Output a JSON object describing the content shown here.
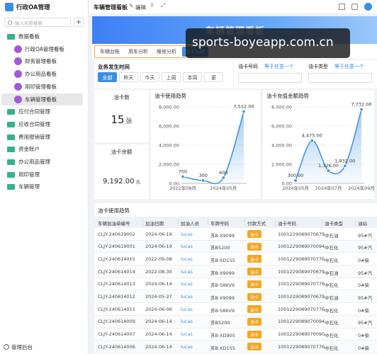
{
  "sidebar": {
    "app_title": "行政OA管理",
    "search_placeholder": "输入名称搜索",
    "add": "+",
    "tree": [
      {
        "label": "数据看板",
        "children": [
          {
            "label": "行政OA管理看板"
          },
          {
            "label": "财务管理看板"
          },
          {
            "label": "办公用品看板"
          },
          {
            "label": "用印管理看板"
          },
          {
            "label": "车辆管理看板",
            "selected": true
          }
        ]
      },
      {
        "label": "应付合同管理"
      },
      {
        "label": "应收合同管理"
      },
      {
        "label": "费用报销管理"
      },
      {
        "label": "资金账户"
      },
      {
        "label": "办公用品管理"
      },
      {
        "label": "用印管理"
      },
      {
        "label": "车辆管理"
      }
    ],
    "footer": "管理后台"
  },
  "topbar": {
    "title": "车辆管理看板",
    "edit": "编辑"
  },
  "banner": {
    "title": "车辆管理看板"
  },
  "watermark": "sports-boyeapp.com.cn",
  "tabs": [
    {
      "label": "车辆台账"
    },
    {
      "label": "用车分析"
    },
    {
      "label": "维修分析"
    },
    {
      "label": "油卡分析",
      "active": true
    }
  ],
  "filters": {
    "time_label": "业务发生时间",
    "time_options": [
      {
        "label": "全部",
        "active": true
      },
      {
        "label": "昨天"
      },
      {
        "label": "今天"
      },
      {
        "label": "上周"
      },
      {
        "label": "本周"
      },
      {
        "label": "更"
      }
    ],
    "fields": [
      {
        "label": "油卡号码",
        "operator": "等于任意一个"
      },
      {
        "label": "油卡类型",
        "operator": "等于任意一个"
      }
    ]
  },
  "cards": [
    {
      "title": "油卡数",
      "value": 15,
      "unit": "张"
    },
    {
      "title": "油卡余额",
      "value": "9,192.00",
      "unit": "元"
    }
  ],
  "chart_data": [
    {
      "type": "line",
      "title": "油卡使用趋势",
      "categories": [
        "2022年08月",
        null,
        "2024年05月",
        null
      ],
      "values": [
        700,
        300,
        600,
        7512
      ],
      "value_labels": [
        "700",
        "300",
        "600",
        "7,512.00"
      ],
      "color": "#3a8ee6",
      "ylim": [
        0,
        8000
      ],
      "yticks": [
        {
          "value": 0,
          "label": "0.00"
        },
        {
          "value": 2000,
          "label": "2,000.00"
        },
        {
          "value": 4000,
          "label": "4,000.00"
        },
        {
          "value": 6000,
          "label": "6,000.00"
        },
        {
          "value": 8000,
          "label": "8,000.00"
        }
      ],
      "grid": true
    },
    {
      "type": "line",
      "title": "油卡充值金额趋势",
      "categories": [
        "2024年05月",
        null,
        "2024年07月",
        null,
        "2024年09月"
      ],
      "values": [
        300,
        4475,
        1326,
        1832,
        7732
      ],
      "value_labels": [
        "300.00",
        "4,475.00",
        "1,326.00",
        "1,832.00",
        "7,732.00"
      ],
      "color": "#3a8ee6",
      "ylim": [
        0,
        8000
      ],
      "yticks": [
        {
          "value": 0,
          "label": "0.00"
        },
        {
          "value": 2000,
          "label": "2,000.00"
        },
        {
          "value": 4000,
          "label": "4,000.00"
        },
        {
          "value": 6000,
          "label": "6,000.00"
        },
        {
          "value": 8000,
          "label": "8,000.00"
        }
      ],
      "grid": true
    }
  ],
  "table": {
    "title": "油卡使用趋势",
    "columns": [
      "车辆加油单编号",
      "加油日期",
      "加油人员",
      "车牌号码",
      "付款方式",
      "油卡号码",
      "油卡类型",
      "油站"
    ],
    "rows": [
      [
        "CLJY-240619002",
        "2024-06-19",
        "lucas",
        "苏B·X9099",
        "油卡",
        "1001229089070679",
        "中石油",
        "95#汽"
      ],
      [
        "CLJY-240619001",
        "2024-06-19",
        "lucas",
        "苏B5200",
        "油卡",
        "1001229089070094",
        "中石化",
        "95#汽"
      ],
      [
        "CLJY-240614015",
        "2022-09-08",
        "lucas",
        "苏B·XD155",
        "油卡",
        "1001229089070776",
        "中石化",
        "0#柴"
      ],
      [
        "CLJY-240614014",
        "2022-08-30",
        "lucas",
        "苏B·X9099",
        "油卡",
        "1001229089070679",
        "中石油",
        "95#汽"
      ],
      [
        "CLJY-240614013",
        "2024-06-14",
        "lucas",
        "苏B·586V9",
        "油卡",
        "1001229089070776",
        "中石化",
        "0#柴"
      ],
      [
        "CLJY-240614012",
        "2024-05-27",
        "lucas",
        "苏B·X9099",
        "油卡",
        "1001229089070679",
        "中石油",
        "95#汽"
      ],
      [
        "CLJY-240614011",
        "2024-06-06",
        "lucas",
        "苏B·586V9",
        "油卡",
        "1001229089070776",
        "中石化",
        "0#柴"
      ],
      [
        "CLJY-240614009",
        "2024-06-14",
        "lucas",
        "苏B5200",
        "油卡",
        "1001229089070094",
        "中石化",
        "95#汽"
      ],
      [
        "CLJY-240614007",
        "2024-06-14",
        "lucas",
        "苏B·XD905",
        "油卡",
        "1001229089070090",
        "中石化",
        "0#柴"
      ],
      [
        "CLJY-240614006",
        "2024-06-14",
        "lucas",
        "苏B·XD155",
        "油卡",
        "1001229089070776",
        "中石化",
        "0#柴"
      ]
    ]
  }
}
